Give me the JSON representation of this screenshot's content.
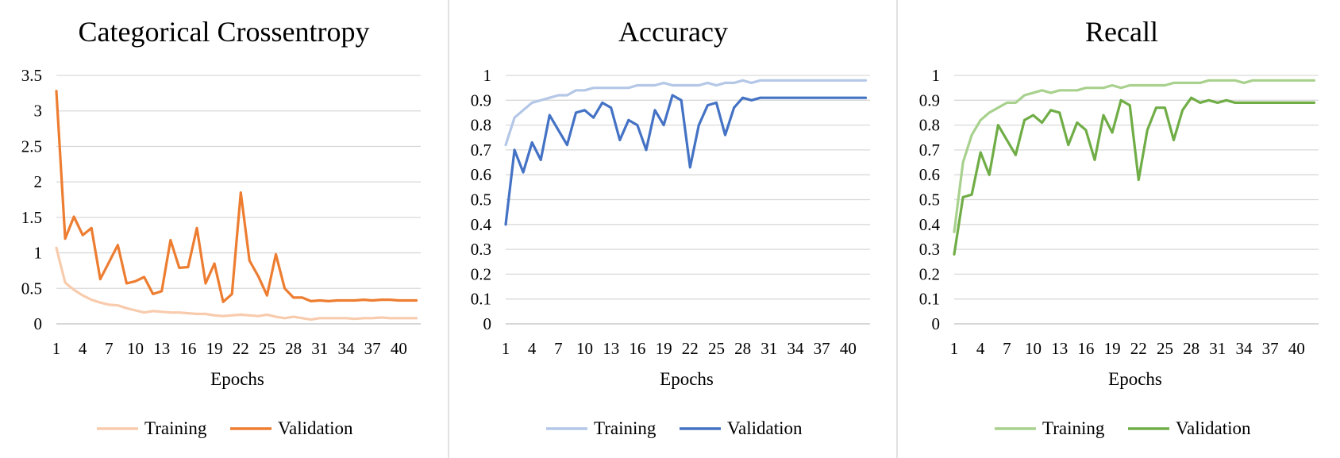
{
  "chart_data": [
    {
      "type": "line",
      "title": "Categorical Crossentropy",
      "xlabel": "Epochs",
      "ylabel": "",
      "ylim": [
        0,
        3.5
      ],
      "yticks": [
        "0",
        "0.5",
        "1",
        "1.5",
        "2",
        "2.5",
        "3",
        "3.5"
      ],
      "ytick_values": [
        0,
        0.5,
        1,
        1.5,
        2,
        2.5,
        3,
        3.5
      ],
      "xticks": [
        "1",
        "4",
        "7",
        "10",
        "13",
        "16",
        "19",
        "22",
        "25",
        "28",
        "31",
        "34",
        "37",
        "40"
      ],
      "xtick_values": [
        1,
        4,
        7,
        10,
        13,
        16,
        19,
        22,
        25,
        28,
        31,
        34,
        37,
        40
      ],
      "x": [
        1,
        2,
        3,
        4,
        5,
        6,
        7,
        8,
        9,
        10,
        11,
        12,
        13,
        14,
        15,
        16,
        17,
        18,
        19,
        20,
        21,
        22,
        23,
        24,
        25,
        26,
        27,
        28,
        29,
        30,
        31,
        32,
        33,
        34,
        35,
        36,
        37,
        38,
        39,
        40,
        41,
        42
      ],
      "grid": true,
      "legend_position": "bottom",
      "series": [
        {
          "name": "Training",
          "color": "#f8cbad",
          "values": [
            1.07,
            0.58,
            0.48,
            0.4,
            0.34,
            0.3,
            0.27,
            0.26,
            0.22,
            0.19,
            0.16,
            0.18,
            0.17,
            0.16,
            0.16,
            0.15,
            0.14,
            0.14,
            0.12,
            0.11,
            0.12,
            0.13,
            0.12,
            0.11,
            0.13,
            0.1,
            0.08,
            0.1,
            0.08,
            0.06,
            0.08,
            0.08,
            0.08,
            0.08,
            0.07,
            0.08,
            0.08,
            0.09,
            0.08,
            0.08,
            0.08,
            0.08
          ]
        },
        {
          "name": "Validation",
          "color": "#ed7d31",
          "values": [
            3.28,
            1.2,
            1.51,
            1.25,
            1.35,
            0.63,
            0.87,
            1.11,
            0.57,
            0.6,
            0.66,
            0.42,
            0.46,
            1.18,
            0.79,
            0.8,
            1.35,
            0.57,
            0.85,
            0.31,
            0.42,
            1.85,
            0.89,
            0.67,
            0.4,
            0.98,
            0.5,
            0.37,
            0.37,
            0.32,
            0.33,
            0.32,
            0.33,
            0.33,
            0.33,
            0.34,
            0.33,
            0.34,
            0.34,
            0.33,
            0.33,
            0.33
          ]
        }
      ]
    },
    {
      "type": "line",
      "title": "Accuracy",
      "xlabel": "Epochs",
      "ylabel": "",
      "ylim": [
        0,
        1
      ],
      "yticks": [
        "0",
        "0.1",
        "0.2",
        "0.3",
        "0.4",
        "0.5",
        "0.6",
        "0.7",
        "0.8",
        "0.9",
        "1"
      ],
      "ytick_values": [
        0,
        0.1,
        0.2,
        0.3,
        0.4,
        0.5,
        0.6,
        0.7,
        0.8,
        0.9,
        1
      ],
      "xticks": [
        "1",
        "4",
        "7",
        "10",
        "13",
        "16",
        "19",
        "22",
        "25",
        "28",
        "31",
        "34",
        "37",
        "40"
      ],
      "xtick_values": [
        1,
        4,
        7,
        10,
        13,
        16,
        19,
        22,
        25,
        28,
        31,
        34,
        37,
        40
      ],
      "x": [
        1,
        2,
        3,
        4,
        5,
        6,
        7,
        8,
        9,
        10,
        11,
        12,
        13,
        14,
        15,
        16,
        17,
        18,
        19,
        20,
        21,
        22,
        23,
        24,
        25,
        26,
        27,
        28,
        29,
        30,
        31,
        32,
        33,
        34,
        35,
        36,
        37,
        38,
        39,
        40,
        41,
        42
      ],
      "grid": true,
      "legend_position": "bottom",
      "series": [
        {
          "name": "Training",
          "color": "#b4c7e7",
          "values": [
            0.72,
            0.83,
            0.86,
            0.89,
            0.9,
            0.91,
            0.92,
            0.92,
            0.94,
            0.94,
            0.95,
            0.95,
            0.95,
            0.95,
            0.95,
            0.96,
            0.96,
            0.96,
            0.97,
            0.96,
            0.96,
            0.96,
            0.96,
            0.97,
            0.96,
            0.97,
            0.97,
            0.98,
            0.97,
            0.98,
            0.98,
            0.98,
            0.98,
            0.98,
            0.98,
            0.98,
            0.98,
            0.98,
            0.98,
            0.98,
            0.98,
            0.98
          ]
        },
        {
          "name": "Validation",
          "color": "#4472c4",
          "values": [
            0.4,
            0.7,
            0.61,
            0.73,
            0.66,
            0.84,
            0.78,
            0.72,
            0.85,
            0.86,
            0.83,
            0.89,
            0.87,
            0.74,
            0.82,
            0.8,
            0.7,
            0.86,
            0.8,
            0.92,
            0.9,
            0.63,
            0.8,
            0.88,
            0.89,
            0.76,
            0.87,
            0.91,
            0.9,
            0.91,
            0.91,
            0.91,
            0.91,
            0.91,
            0.91,
            0.91,
            0.91,
            0.91,
            0.91,
            0.91,
            0.91,
            0.91
          ]
        }
      ]
    },
    {
      "type": "line",
      "title": "Recall",
      "xlabel": "Epochs",
      "ylabel": "",
      "ylim": [
        0,
        1
      ],
      "yticks": [
        "0",
        "0.1",
        "0.2",
        "0.3",
        "0.4",
        "0.5",
        "0.6",
        "0.7",
        "0.8",
        "0.9",
        "1"
      ],
      "ytick_values": [
        0,
        0.1,
        0.2,
        0.3,
        0.4,
        0.5,
        0.6,
        0.7,
        0.8,
        0.9,
        1
      ],
      "xticks": [
        "1",
        "4",
        "7",
        "10",
        "13",
        "16",
        "19",
        "22",
        "25",
        "28",
        "31",
        "34",
        "37",
        "40"
      ],
      "xtick_values": [
        1,
        4,
        7,
        10,
        13,
        16,
        19,
        22,
        25,
        28,
        31,
        34,
        37,
        40
      ],
      "x": [
        1,
        2,
        3,
        4,
        5,
        6,
        7,
        8,
        9,
        10,
        11,
        12,
        13,
        14,
        15,
        16,
        17,
        18,
        19,
        20,
        21,
        22,
        23,
        24,
        25,
        26,
        27,
        28,
        29,
        30,
        31,
        32,
        33,
        34,
        35,
        36,
        37,
        38,
        39,
        40,
        41,
        42
      ],
      "grid": true,
      "legend_position": "bottom",
      "series": [
        {
          "name": "Training",
          "color": "#a9d18e",
          "values": [
            0.37,
            0.65,
            0.76,
            0.82,
            0.85,
            0.87,
            0.89,
            0.89,
            0.92,
            0.93,
            0.94,
            0.93,
            0.94,
            0.94,
            0.94,
            0.95,
            0.95,
            0.95,
            0.96,
            0.95,
            0.96,
            0.96,
            0.96,
            0.96,
            0.96,
            0.97,
            0.97,
            0.97,
            0.97,
            0.98,
            0.98,
            0.98,
            0.98,
            0.97,
            0.98,
            0.98,
            0.98,
            0.98,
            0.98,
            0.98,
            0.98,
            0.98
          ]
        },
        {
          "name": "Validation",
          "color": "#70ad47",
          "values": [
            0.28,
            0.51,
            0.52,
            0.69,
            0.6,
            0.8,
            0.74,
            0.68,
            0.82,
            0.84,
            0.81,
            0.86,
            0.85,
            0.72,
            0.81,
            0.78,
            0.66,
            0.84,
            0.77,
            0.9,
            0.88,
            0.58,
            0.78,
            0.87,
            0.87,
            0.74,
            0.86,
            0.91,
            0.89,
            0.9,
            0.89,
            0.9,
            0.89,
            0.89,
            0.89,
            0.89,
            0.89,
            0.89,
            0.89,
            0.89,
            0.89,
            0.89
          ]
        }
      ]
    }
  ]
}
